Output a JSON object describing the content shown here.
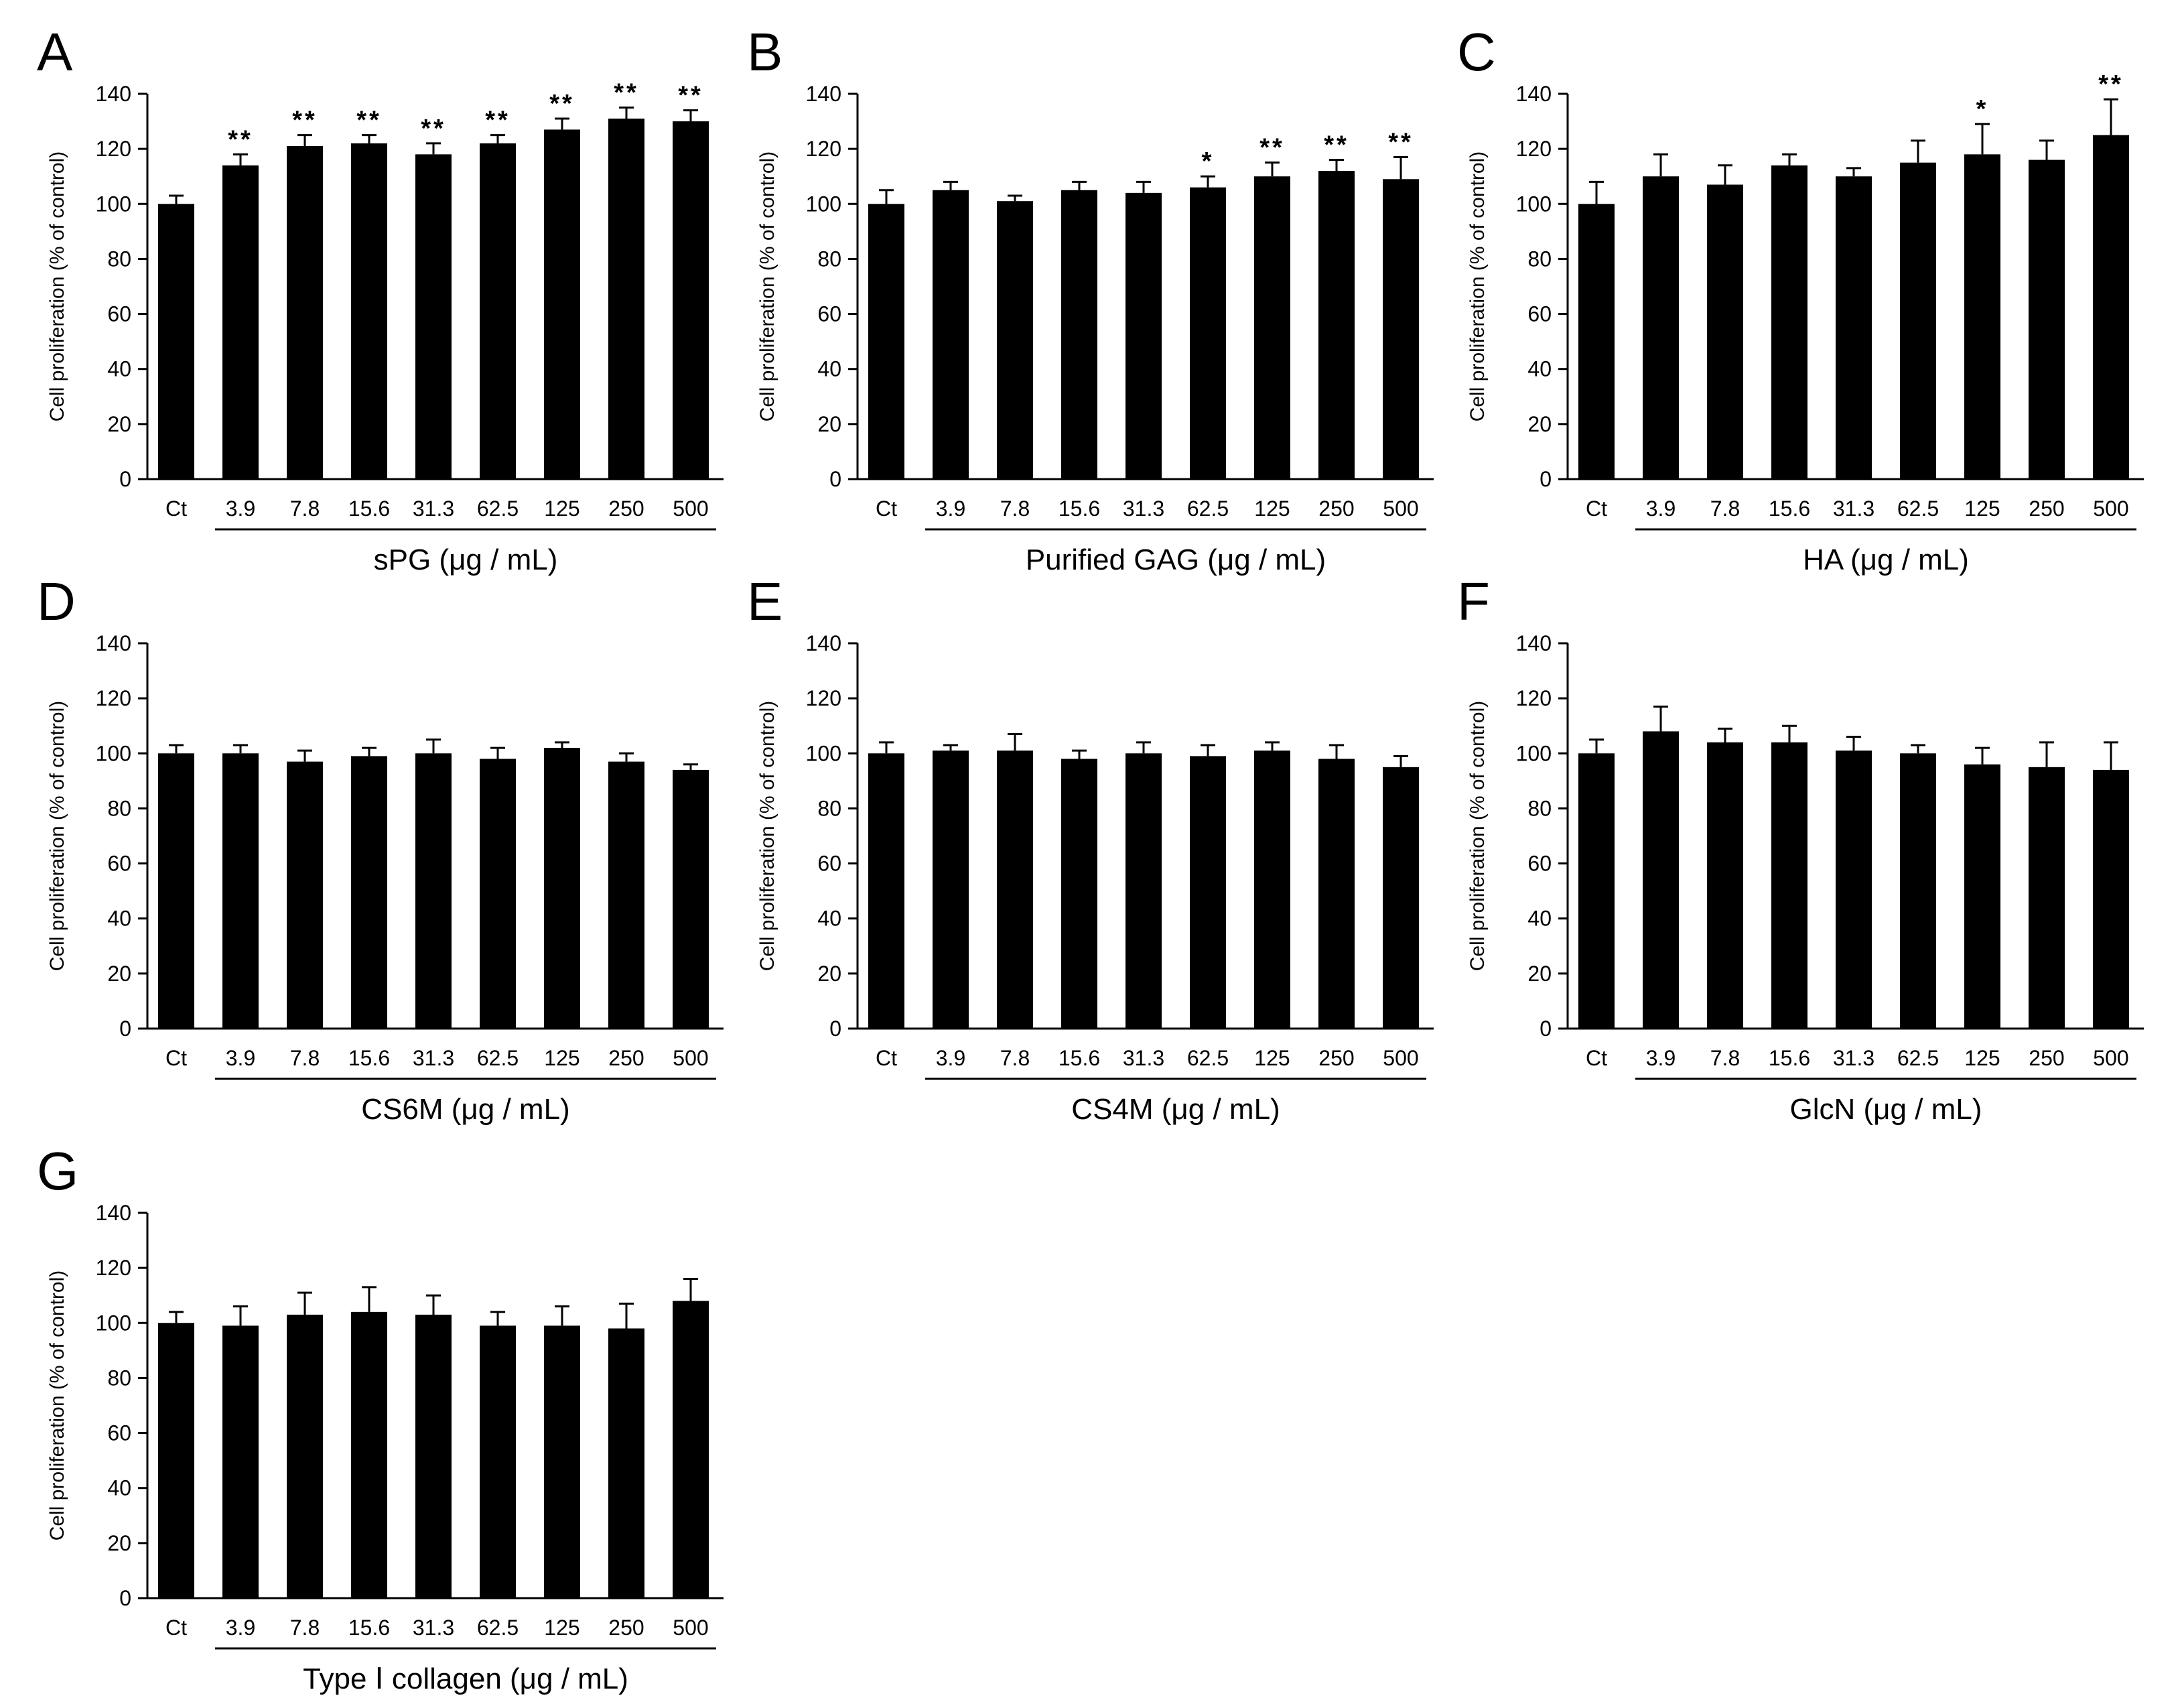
{
  "chart_data": [
    {
      "type": "bar",
      "panel": "A",
      "categories": [
        "Ct",
        "3.9",
        "7.8",
        "15.6",
        "31.3",
        "62.5",
        "125",
        "250",
        "500"
      ],
      "values": [
        100,
        114,
        121,
        122,
        118,
        122,
        127,
        131,
        130
      ],
      "errors": [
        3,
        4,
        4,
        3,
        4,
        3,
        4,
        4,
        4
      ],
      "significance": [
        "",
        "**",
        "**",
        "**",
        "**",
        "**",
        "**",
        "**",
        "**"
      ],
      "xlabel": "sPG (μg / mL)",
      "ylabel": "Cell proliferation (% of control)",
      "ylim": [
        0,
        140
      ],
      "yticks": [
        0,
        20,
        40,
        60,
        80,
        100,
        120,
        140
      ],
      "grid": false,
      "bar_color": "#000000"
    },
    {
      "type": "bar",
      "panel": "B",
      "categories": [
        "Ct",
        "3.9",
        "7.8",
        "15.6",
        "31.3",
        "62.5",
        "125",
        "250",
        "500"
      ],
      "values": [
        100,
        105,
        101,
        105,
        104,
        106,
        110,
        112,
        109
      ],
      "errors": [
        5,
        3,
        2,
        3,
        4,
        4,
        5,
        4,
        8
      ],
      "significance": [
        "",
        "",
        "",
        "",
        "",
        "*",
        "**",
        "**",
        "**"
      ],
      "xlabel": "Purified GAG (μg / mL)",
      "ylabel": "Cell proliferation (% of control)",
      "ylim": [
        0,
        140
      ],
      "yticks": [
        0,
        20,
        40,
        60,
        80,
        100,
        120,
        140
      ],
      "grid": false,
      "bar_color": "#000000"
    },
    {
      "type": "bar",
      "panel": "C",
      "categories": [
        "Ct",
        "3.9",
        "7.8",
        "15.6",
        "31.3",
        "62.5",
        "125",
        "250",
        "500"
      ],
      "values": [
        100,
        110,
        107,
        114,
        110,
        115,
        118,
        116,
        125
      ],
      "errors": [
        8,
        8,
        7,
        4,
        3,
        8,
        11,
        7,
        13
      ],
      "significance": [
        "",
        "",
        "",
        "",
        "",
        "",
        "*",
        "",
        "**"
      ],
      "xlabel": "HA (μg / mL)",
      "ylabel": "Cell proliferation (% of control)",
      "ylim": [
        0,
        140
      ],
      "yticks": [
        0,
        20,
        40,
        60,
        80,
        100,
        120,
        140
      ],
      "grid": false,
      "bar_color": "#000000"
    },
    {
      "type": "bar",
      "panel": "D",
      "categories": [
        "Ct",
        "3.9",
        "7.8",
        "15.6",
        "31.3",
        "62.5",
        "125",
        "250",
        "500"
      ],
      "values": [
        100,
        100,
        97,
        99,
        100,
        98,
        102,
        97,
        94
      ],
      "errors": [
        3,
        3,
        4,
        3,
        5,
        4,
        2,
        3,
        2
      ],
      "significance": [
        "",
        "",
        "",
        "",
        "",
        "",
        "",
        "",
        ""
      ],
      "xlabel": "CS6M (μg / mL)",
      "ylabel": "Cell proliferation (% of control)",
      "ylim": [
        0,
        140
      ],
      "yticks": [
        0,
        20,
        40,
        60,
        80,
        100,
        120,
        140
      ],
      "grid": false,
      "bar_color": "#000000"
    },
    {
      "type": "bar",
      "panel": "E",
      "categories": [
        "Ct",
        "3.9",
        "7.8",
        "15.6",
        "31.3",
        "62.5",
        "125",
        "250",
        "500"
      ],
      "values": [
        100,
        101,
        101,
        98,
        100,
        99,
        101,
        98,
        95
      ],
      "errors": [
        4,
        2,
        6,
        3,
        4,
        4,
        3,
        5,
        4
      ],
      "significance": [
        "",
        "",
        "",
        "",
        "",
        "",
        "",
        "",
        ""
      ],
      "xlabel": "CS4M (μg / mL)",
      "ylabel": "Cell proliferation (% of control)",
      "ylim": [
        0,
        140
      ],
      "yticks": [
        0,
        20,
        40,
        60,
        80,
        100,
        120,
        140
      ],
      "grid": false,
      "bar_color": "#000000"
    },
    {
      "type": "bar",
      "panel": "F",
      "categories": [
        "Ct",
        "3.9",
        "7.8",
        "15.6",
        "31.3",
        "62.5",
        "125",
        "250",
        "500"
      ],
      "values": [
        100,
        108,
        104,
        104,
        101,
        100,
        96,
        95,
        94
      ],
      "errors": [
        5,
        9,
        5,
        6,
        5,
        3,
        6,
        9,
        10
      ],
      "significance": [
        "",
        "",
        "",
        "",
        "",
        "",
        "",
        "",
        ""
      ],
      "xlabel": "GlcN (μg / mL)",
      "ylabel": "Cell proliferation (% of control)",
      "ylim": [
        0,
        140
      ],
      "yticks": [
        0,
        20,
        40,
        60,
        80,
        100,
        120,
        140
      ],
      "grid": false,
      "bar_color": "#000000"
    },
    {
      "type": "bar",
      "panel": "G",
      "categories": [
        "Ct",
        "3.9",
        "7.8",
        "15.6",
        "31.3",
        "62.5",
        "125",
        "250",
        "500"
      ],
      "values": [
        100,
        99,
        103,
        104,
        103,
        99,
        99,
        98,
        108
      ],
      "errors": [
        4,
        7,
        8,
        9,
        7,
        5,
        7,
        9,
        8
      ],
      "significance": [
        "",
        "",
        "",
        "",
        "",
        "",
        "",
        "",
        ""
      ],
      "xlabel": "Type Ⅰ collagen (μg / mL)",
      "ylabel": "Cell proliferation (% of control)",
      "ylim": [
        0,
        140
      ],
      "yticks": [
        0,
        20,
        40,
        60,
        80,
        100,
        120,
        140
      ],
      "grid": false,
      "bar_color": "#000000"
    }
  ]
}
